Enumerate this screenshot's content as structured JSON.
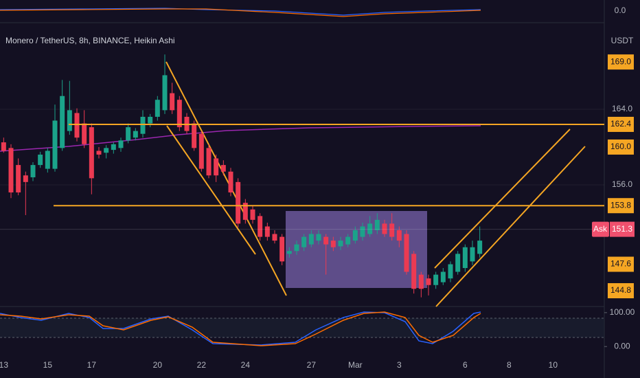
{
  "header": {
    "currency": "USDT",
    "volume_axis_label": "0.0"
  },
  "chart_data": {
    "type": "candlestick",
    "title": "Monero / TetherUS, 8h, BINANCE, Heikin Ashi",
    "up_color": "#1ba38a",
    "down_color": "#ec3a52",
    "open": [
      160.5,
      159.9,
      158.1,
      157.0,
      156.8,
      158.1,
      157.7,
      157.7,
      159.9,
      161.7,
      163.6,
      162.5,
      162.1,
      159.6,
      159.4,
      159.7,
      159.9,
      160.7,
      161.0,
      161.4,
      162.5,
      163.2,
      163.9,
      165.7,
      165.0,
      163.2,
      162.5,
      161.4,
      159.9,
      158.8,
      158.1,
      157.4,
      156.3,
      154.1,
      153.4,
      152.7,
      151.6,
      150.8,
      150.5,
      148.7,
      149.0,
      149.4,
      149.7,
      150.1,
      150.5,
      150.1,
      149.5,
      149.7,
      150.1,
      150.5,
      150.8,
      151.2,
      151.9,
      151.9,
      151.2,
      150.8,
      148.7,
      146.5,
      146.1,
      145.4,
      145.7,
      146.1,
      146.8,
      147.2,
      147.9,
      148.7
    ],
    "high": [
      161.0,
      160.3,
      158.8,
      157.4,
      158.4,
      159.5,
      159.9,
      164.5,
      167.1,
      167.0,
      164.1,
      163.9,
      162.5,
      160.0,
      160.2,
      160.5,
      161.0,
      162.5,
      162.0,
      163.9,
      163.5,
      165.4,
      169.8,
      166.8,
      165.4,
      163.6,
      162.8,
      161.7,
      160.3,
      159.2,
      158.6,
      157.8,
      156.7,
      154.5,
      153.8,
      153.0,
      152.0,
      151.2,
      150.8,
      149.4,
      150.1,
      150.8,
      151.2,
      151.2,
      150.8,
      150.5,
      150.5,
      150.8,
      151.6,
      152.0,
      152.7,
      153.0,
      152.3,
      153.0,
      151.6,
      151.2,
      149.0,
      146.8,
      146.5,
      146.8,
      147.2,
      147.9,
      149.0,
      149.7,
      150.1,
      151.6
    ],
    "low": [
      159.4,
      154.6,
      154.9,
      152.8,
      156.4,
      157.8,
      157.3,
      157.4,
      159.6,
      161.3,
      160.6,
      159.9,
      155.0,
      158.8,
      158.8,
      159.3,
      159.5,
      160.4,
      160.7,
      161.0,
      162.1,
      162.8,
      163.5,
      163.5,
      161.7,
      161.4,
      159.6,
      157.4,
      156.7,
      156.3,
      157.0,
      154.8,
      151.5,
      151.9,
      151.9,
      150.1,
      150.1,
      149.8,
      147.5,
      148.3,
      148.6,
      149.0,
      149.4,
      149.7,
      146.5,
      149.0,
      149.1,
      149.4,
      149.8,
      150.1,
      150.5,
      150.8,
      150.5,
      150.1,
      149.4,
      146.5,
      144.5,
      144.1,
      144.3,
      145.0,
      145.4,
      145.7,
      146.5,
      146.8,
      147.5,
      148.3
    ],
    "close": [
      159.6,
      155.2,
      155.2,
      156.3,
      158.1,
      159.2,
      159.6,
      162.8,
      165.4,
      163.9,
      161.0,
      160.3,
      156.7,
      159.2,
      159.9,
      160.3,
      160.7,
      162.1,
      161.7,
      163.2,
      163.2,
      165.0,
      167.6,
      163.9,
      162.1,
      161.7,
      159.9,
      157.7,
      157.0,
      157.0,
      157.4,
      155.2,
      151.9,
      152.3,
      152.3,
      150.5,
      150.5,
      150.1,
      147.9,
      149.0,
      149.7,
      150.5,
      150.8,
      150.8,
      149.7,
      149.4,
      150.1,
      150.5,
      151.2,
      151.6,
      151.9,
      152.3,
      150.8,
      150.5,
      150.1,
      146.8,
      145.0,
      145.0,
      145.4,
      146.5,
      146.8,
      147.6,
      148.7,
      149.4,
      149.4,
      150.1
    ],
    "ylim": [
      143.2,
      172.65
    ],
    "yticks": [
      {
        "value": 164,
        "label": "164.0"
      },
      {
        "value": 156,
        "label": "156.0"
      }
    ],
    "xlim": [
      -0.5,
      82
    ],
    "xticks": [
      {
        "value": 0,
        "label": "13"
      },
      {
        "value": 6,
        "label": "15"
      },
      {
        "value": 12,
        "label": "17"
      },
      {
        "value": 21,
        "label": "20"
      },
      {
        "value": 27,
        "label": "22"
      },
      {
        "value": 33,
        "label": "24"
      },
      {
        "value": 42,
        "label": "27"
      },
      {
        "value": 48,
        "label": "Mar"
      },
      {
        "value": 54,
        "label": "3"
      },
      {
        "value": 63,
        "label": "6"
      },
      {
        "value": 69,
        "label": "8"
      },
      {
        "value": 75,
        "label": "10"
      }
    ],
    "price_labels": [
      {
        "value": 169.0,
        "label": "169.0"
      },
      {
        "value": 162.4,
        "label": "162.4"
      },
      {
        "value": 160.0,
        "label": "160.0"
      },
      {
        "value": 153.8,
        "label": "153.8"
      },
      {
        "value": 147.6,
        "label": "147.6"
      },
      {
        "value": 144.8,
        "label": "144.8"
      }
    ],
    "level_lines": [
      {
        "value": 162.4
      },
      {
        "value": 153.8
      }
    ],
    "label_color": "#f5a623",
    "ask": {
      "name": "Ask",
      "value": 151.3,
      "label": "151.3",
      "color": "#f0506e"
    },
    "oscillator": {
      "ylim": [
        -32,
        118
      ],
      "yticks": [
        {
          "value": 100,
          "label": "100.00"
        },
        {
          "value": 0,
          "label": "0.00"
        }
      ]
    }
  }
}
